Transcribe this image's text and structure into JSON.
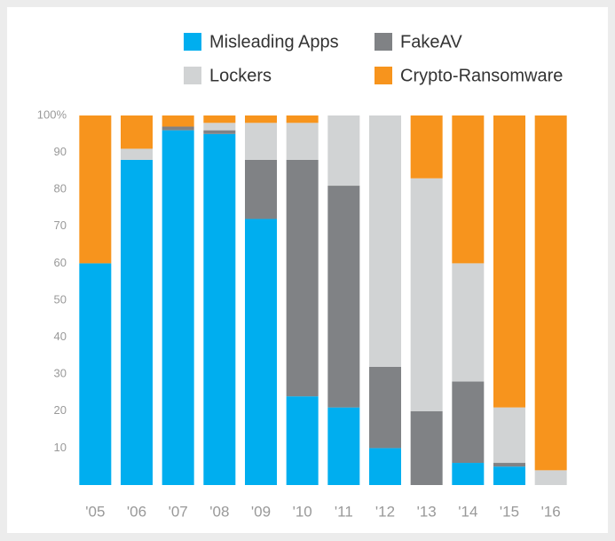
{
  "chart_data": {
    "type": "stacked_bar",
    "categories": [
      "'05",
      "'06",
      "'07",
      "'08",
      "'09",
      "'10",
      "'11",
      "'12",
      "'13",
      "'14",
      "'15",
      "'16"
    ],
    "series": [
      {
        "name": "Misleading Apps",
        "color": "#00aeef",
        "values": [
          60,
          88,
          96,
          95,
          72,
          24,
          21,
          10,
          0,
          6,
          5,
          0
        ]
      },
      {
        "name": "FakeAV",
        "color": "#808285",
        "values": [
          0,
          0,
          1,
          1,
          16,
          64,
          60,
          22,
          20,
          22,
          1,
          0
        ]
      },
      {
        "name": "Lockers",
        "color": "#d1d3d4",
        "values": [
          0,
          3,
          0,
          2,
          10,
          10,
          19,
          68,
          63,
          32,
          15,
          4
        ]
      },
      {
        "name": "Crypto-Ransomware",
        "color": "#f7941d",
        "values": [
          40,
          9,
          3,
          2,
          2,
          2,
          0,
          0,
          17,
          40,
          79,
          96
        ]
      }
    ],
    "ylim": [
      0,
      100
    ],
    "yticks": [
      10,
      20,
      30,
      40,
      50,
      60,
      70,
      80,
      90,
      {
        "value": 100,
        "label": "100%"
      }
    ]
  }
}
